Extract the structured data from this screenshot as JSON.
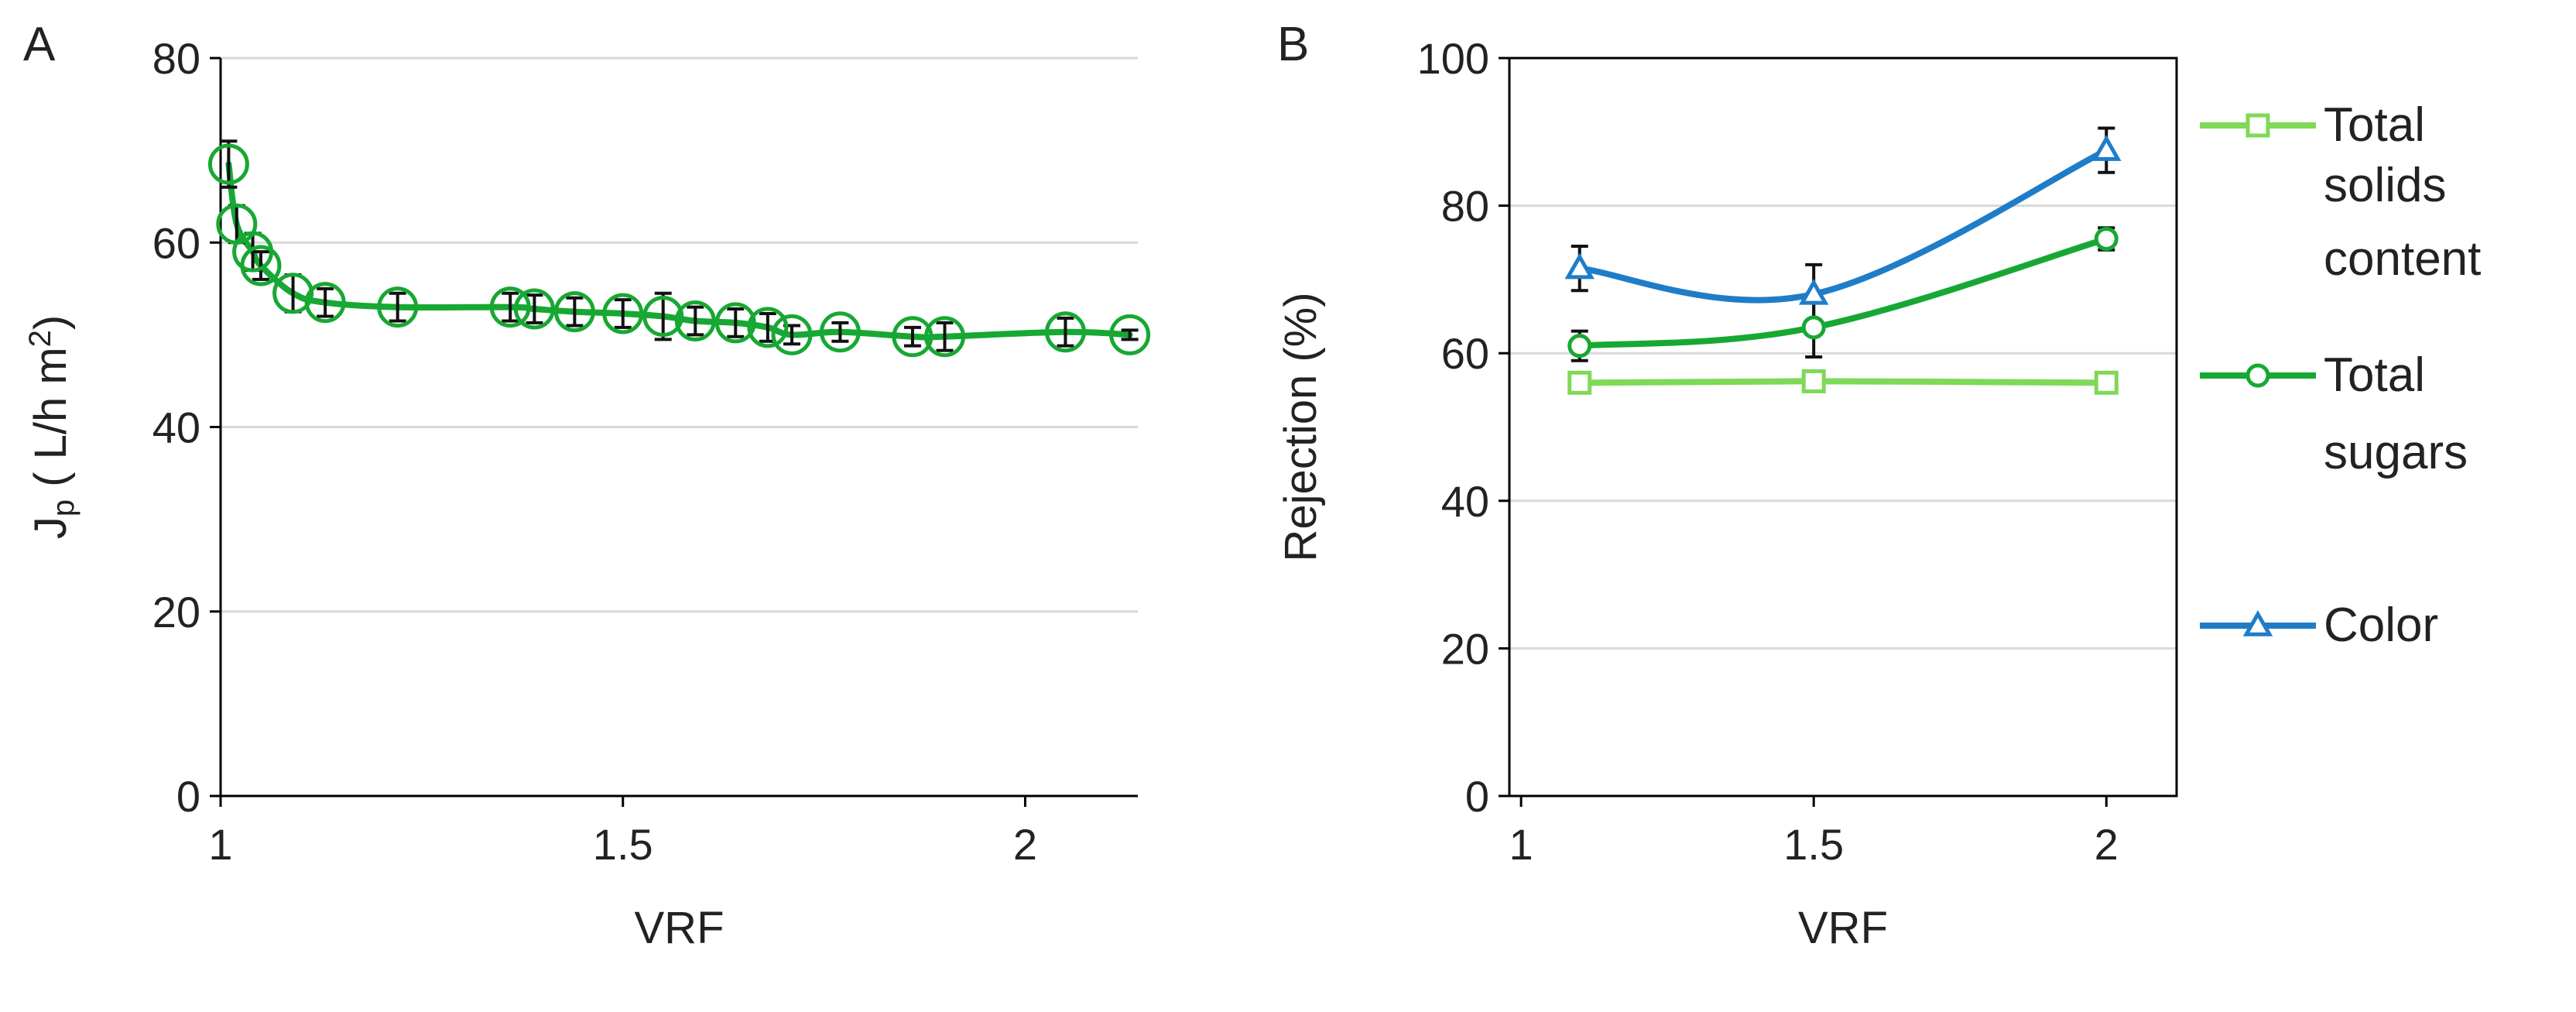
{
  "panels": [
    {
      "letter": "A"
    },
    {
      "letter": "B"
    }
  ],
  "colors": {
    "light_green": "#7ED957",
    "green": "#17A833",
    "blue": "#1F7DC8",
    "error_bar": "#111111",
    "grid": "#d9d9d9",
    "axis": "#000000"
  },
  "chart_data": [
    {
      "type": "scatter",
      "title": "",
      "xlabel": "VRF",
      "ylabel_main": "J",
      "ylabel_sub": "p",
      "ylabel_rest": " ( L/h m",
      "ylabel_sup": "2",
      "ylabel_end": ")",
      "xlim": [
        1,
        2.14
      ],
      "ylim": [
        0,
        80
      ],
      "xticks": [
        1,
        1.5,
        2
      ],
      "xtick_labels": [
        "1",
        "1.5",
        "2"
      ],
      "yticks": [
        0,
        20,
        40,
        60,
        80
      ],
      "ytick_labels": [
        "0",
        "20",
        "40",
        "60",
        "80"
      ],
      "grid": "horizontal",
      "marker": "circle",
      "points": [
        {
          "x": 1.01,
          "y": 68.5,
          "err": 2.5
        },
        {
          "x": 1.02,
          "y": 62.0,
          "err": 2.0
        },
        {
          "x": 1.04,
          "y": 59.0,
          "err": 2.0
        },
        {
          "x": 1.05,
          "y": 57.5,
          "err": 1.5
        },
        {
          "x": 1.09,
          "y": 54.5,
          "err": 2.0
        },
        {
          "x": 1.13,
          "y": 53.5,
          "err": 1.5
        },
        {
          "x": 1.22,
          "y": 53.0,
          "err": 1.5
        },
        {
          "x": 1.36,
          "y": 53.0,
          "err": 1.5
        },
        {
          "x": 1.39,
          "y": 52.8,
          "err": 1.5
        },
        {
          "x": 1.44,
          "y": 52.5,
          "err": 1.5
        },
        {
          "x": 1.5,
          "y": 52.3,
          "err": 1.5
        },
        {
          "x": 1.55,
          "y": 52.0,
          "err": 2.5
        },
        {
          "x": 1.59,
          "y": 51.5,
          "err": 1.5
        },
        {
          "x": 1.64,
          "y": 51.3,
          "err": 1.5
        },
        {
          "x": 1.68,
          "y": 50.8,
          "err": 1.5
        },
        {
          "x": 1.71,
          "y": 50.0,
          "err": 1.0
        },
        {
          "x": 1.77,
          "y": 50.3,
          "err": 1.0
        },
        {
          "x": 1.86,
          "y": 49.8,
          "err": 1.0
        },
        {
          "x": 1.9,
          "y": 49.8,
          "err": 1.5
        },
        {
          "x": 2.05,
          "y": 50.3,
          "err": 1.5
        },
        {
          "x": 2.13,
          "y": 50.0,
          "err": 0.5
        }
      ]
    },
    {
      "type": "line",
      "title": "",
      "xlabel": "VRF",
      "ylabel": "Rejection (%)",
      "xlim": [
        0.98,
        2.12
      ],
      "ylim": [
        0,
        100
      ],
      "xticks": [
        1,
        1.5,
        2
      ],
      "xtick_labels": [
        "1",
        "1.5",
        "2"
      ],
      "yticks": [
        0,
        20,
        40,
        60,
        80,
        100
      ],
      "ytick_labels": [
        "0",
        "20",
        "40",
        "60",
        "80",
        "100"
      ],
      "grid": "horizontal",
      "legend_position": "right",
      "x": [
        1.1,
        1.5,
        2.0
      ],
      "series": [
        {
          "name_lines": [
            "Total",
            "solids",
            "content"
          ],
          "marker": "square",
          "color": "#7ED957",
          "values": [
            56.0,
            56.2,
            56.0
          ],
          "errors": [
            1.0,
            1.0,
            0.8
          ]
        },
        {
          "name_lines": [
            "Total",
            "sugars"
          ],
          "marker": "circle",
          "color": "#17A833",
          "values": [
            61.0,
            63.5,
            75.5
          ],
          "errors": [
            2.0,
            4.0,
            1.5
          ]
        },
        {
          "name_lines": [
            "Color"
          ],
          "marker": "triangle",
          "color": "#1F7DC8",
          "values": [
            71.5,
            68.0,
            87.5
          ],
          "errors": [
            3.0,
            4.0,
            3.0
          ]
        }
      ]
    }
  ]
}
